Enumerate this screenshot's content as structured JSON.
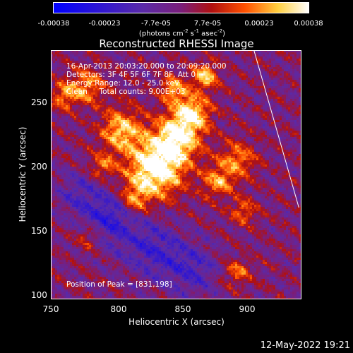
{
  "colorbar": {
    "ticks": [
      "-0.00038",
      "-0.00023",
      "-7.7e-05",
      "7.7e-05",
      "0.00023",
      "0.00038"
    ],
    "unit_main": "(photons cm",
    "unit_exp1": "-2",
    "unit_mid": " s",
    "unit_exp2": "-1",
    "unit_end": " asec",
    "unit_exp3": "-2",
    "unit_close": ")",
    "colors": [
      "#0000ff",
      "#5a2aa8",
      "#7a1e7a",
      "#b01010",
      "#ff5000",
      "#ffd040",
      "#ffffff"
    ]
  },
  "chart_data": {
    "type": "heatmap",
    "title": "Reconstructed RHESSI Image",
    "xlabel": "Heliocentric X (arcsec)",
    "ylabel": "Heliocentric Y (arcsec)",
    "xlim": [
      750,
      945
    ],
    "ylim": [
      97,
      290
    ],
    "x_ticks": [
      "750",
      "800",
      "850",
      "900"
    ],
    "y_ticks": [
      "100",
      "150",
      "200",
      "250"
    ],
    "value_range": [
      -0.00038,
      0.00038
    ],
    "peak": [
      831,
      198
    ],
    "annotations": {
      "time": "16-Apr-2013 20:03:20.000 to 20:09:20.000",
      "detectors": "Detectors: 3F 4F 5F 6F 7F 8F, Att 0",
      "energy": "Energy Range: 12.0 - 25.0 keV",
      "method": "Clean     Total counts: 9.00E+03",
      "peak_text": "Position of Peak = [831,198]"
    },
    "limb_line": [
      [
        908,
        290
      ],
      [
        943,
        168
      ]
    ]
  },
  "footer": {
    "date": "12-May-2022 19:21"
  }
}
